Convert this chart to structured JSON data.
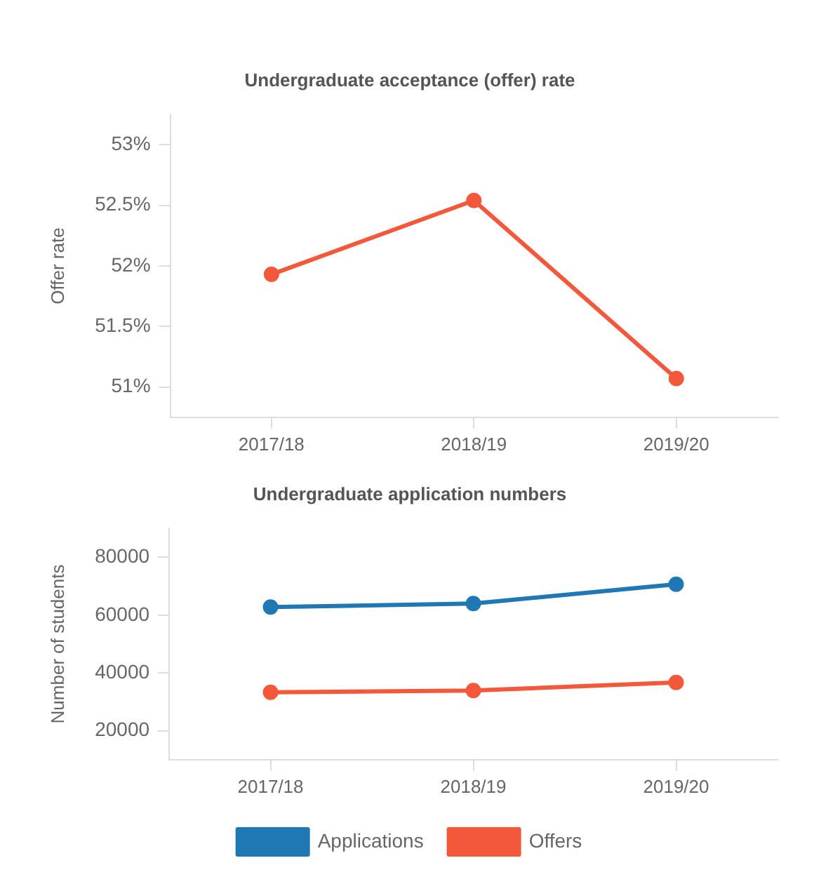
{
  "chart_data": [
    {
      "type": "line",
      "title": "Undergraduate acceptance (offer) rate",
      "ylabel": "Offer rate",
      "categories": [
        "2017/18",
        "2018/19",
        "2019/20"
      ],
      "series": [
        {
          "color": "#f4583a",
          "values": [
            51.93,
            52.54,
            51.07
          ]
        }
      ],
      "ylim": [
        50.75,
        53.25
      ],
      "yticks": [
        {
          "value": 51,
          "label": "51%"
        },
        {
          "value": 51.5,
          "label": "51.5%"
        },
        {
          "value": 52,
          "label": "52%"
        },
        {
          "value": 52.5,
          "label": "52.5%"
        },
        {
          "value": 53,
          "label": "53%"
        }
      ],
      "marker": "circle",
      "line_style": "solid"
    },
    {
      "type": "line",
      "title": "Undergraduate application numbers",
      "ylabel": "Number of students",
      "categories": [
        "2017/18",
        "2018/19",
        "2019/20"
      ],
      "series": [
        {
          "name": "Applications",
          "color": "#1f77b4",
          "values": [
            62800,
            64000,
            70700
          ]
        },
        {
          "name": "Offers",
          "color": "#f4583a",
          "values": [
            33300,
            33900,
            36700
          ]
        }
      ],
      "ylim": [
        10000,
        90000
      ],
      "yticks": [
        20000,
        40000,
        60000,
        80000
      ],
      "legend": "bottom",
      "marker": "circle",
      "line_style": "solid"
    }
  ]
}
